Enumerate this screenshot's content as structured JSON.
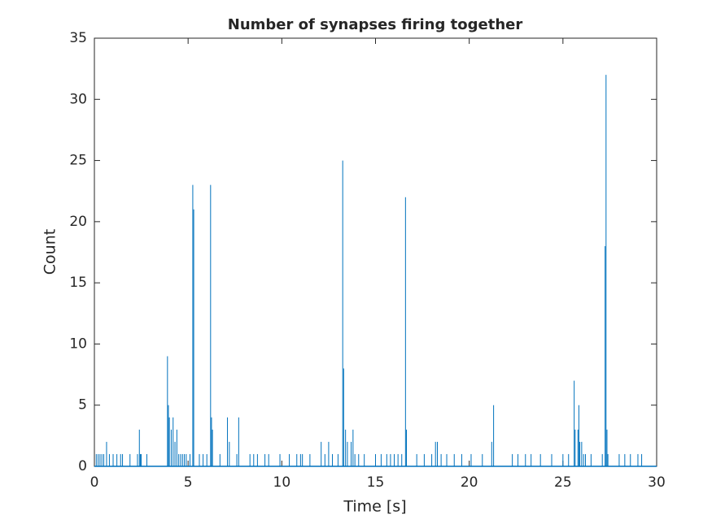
{
  "chart_data": {
    "type": "spike",
    "title": "Number of synapses firing together",
    "x_label": "Time [s]",
    "y_label": "Count",
    "x": [
      0.1,
      0.2,
      0.3,
      0.4,
      0.5,
      0.65,
      0.8,
      1.0,
      1.2,
      1.4,
      1.5,
      1.9,
      2.3,
      2.4,
      2.45,
      2.5,
      2.8,
      3.9,
      3.95,
      4.0,
      4.1,
      4.2,
      4.3,
      4.4,
      4.5,
      4.6,
      4.7,
      4.8,
      4.9,
      5.1,
      5.25,
      5.3,
      5.6,
      5.8,
      6.0,
      6.2,
      6.25,
      6.3,
      6.7,
      7.1,
      7.2,
      7.6,
      7.7,
      8.3,
      8.5,
      8.7,
      9.1,
      9.3,
      9.9,
      10.4,
      10.8,
      11.0,
      11.1,
      11.5,
      12.1,
      12.3,
      12.5,
      12.7,
      13.0,
      13.25,
      13.3,
      13.4,
      13.5,
      13.7,
      13.8,
      13.9,
      14.1,
      14.4,
      15.0,
      15.3,
      15.6,
      15.8,
      16.0,
      16.2,
      16.4,
      16.6,
      16.65,
      17.2,
      17.6,
      18.0,
      18.2,
      18.3,
      18.5,
      18.8,
      19.2,
      19.6,
      20.1,
      20.7,
      21.2,
      21.3,
      22.3,
      22.6,
      23.0,
      23.3,
      23.8,
      24.4,
      25.0,
      25.3,
      25.6,
      25.65,
      25.8,
      25.85,
      25.9,
      26.0,
      26.1,
      26.2,
      26.5,
      27.1,
      27.25,
      27.3,
      27.35,
      27.4,
      28.0,
      28.3,
      28.6,
      29.0,
      29.2
    ],
    "values": [
      1,
      1,
      1,
      1,
      1,
      2,
      1,
      1,
      1,
      1,
      1,
      1,
      1,
      3,
      1,
      1,
      1,
      9,
      5,
      4,
      3,
      4,
      2,
      3,
      1,
      1,
      1,
      1,
      1,
      1,
      23,
      21,
      1,
      1,
      1,
      23,
      4,
      3,
      1,
      4,
      2,
      1,
      4,
      1,
      1,
      1,
      1,
      1,
      1,
      1,
      1,
      1,
      1,
      1,
      2,
      1,
      2,
      1,
      1,
      25,
      8,
      3,
      2,
      2,
      3,
      1,
      1,
      1,
      1,
      1,
      1,
      1,
      1,
      1,
      1,
      22,
      3,
      1,
      1,
      1,
      2,
      2,
      1,
      1,
      1,
      1,
      1,
      1,
      2,
      5,
      1,
      1,
      1,
      1,
      1,
      1,
      1,
      1,
      7,
      3,
      3,
      5,
      2,
      2,
      1,
      1,
      1,
      1,
      18,
      32,
      3,
      1,
      1,
      1,
      1,
      1,
      1
    ],
    "color": "#0072bd",
    "xlim": [
      0,
      30
    ],
    "ylim": [
      0,
      35
    ],
    "xticks": [
      0,
      5,
      10,
      15,
      20,
      25,
      30
    ],
    "yticks": [
      0,
      5,
      10,
      15,
      20,
      25,
      30,
      35
    ],
    "grid": false
  }
}
